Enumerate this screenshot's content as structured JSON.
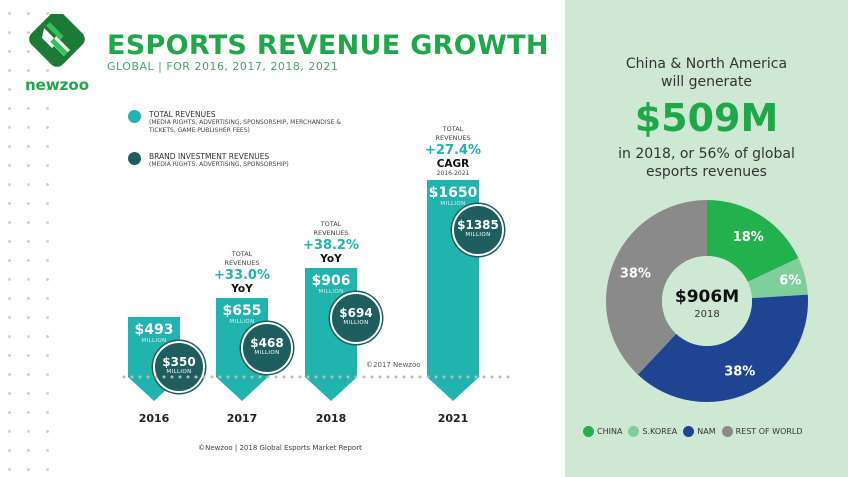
{
  "header": {
    "title": "ESPORTS REVENUE GROWTH",
    "subtitle": "GLOBAL | FOR 2016, 2017, 2018, 2021",
    "logo_text": "newzoo"
  },
  "legend": [
    {
      "label": "TOTAL REVENUES",
      "sub": "(MEDIA RIGHTS, ADVERTISING, SPONSORSHIP, MERCHANDISE & TICKETS, GAME PUBLISHER FEES)",
      "color": "#21b3ae"
    },
    {
      "label": "BRAND INVESTMENT REVENUES",
      "sub": "(MEDIA RIGHTS, ADVERTISING, SPONSORSHIP)",
      "color": "#1e5e5f"
    }
  ],
  "chart_data": [
    {
      "type": "bar",
      "categories": [
        "2016",
        "2017",
        "2018",
        "2021"
      ],
      "series": [
        {
          "name": "TOTAL REVENUES",
          "values": [
            493,
            655,
            906,
            1650
          ],
          "labels": [
            "$493",
            "$655",
            "$906",
            "$1650"
          ]
        },
        {
          "name": "BRAND INVESTMENT REVENUES",
          "values": [
            350,
            468,
            694,
            1385
          ],
          "labels": [
            "$350",
            "$468",
            "$694",
            "$1385"
          ]
        }
      ],
      "unit": "MILLION",
      "annotations": [
        null,
        {
          "title": "TOTAL REVENUES",
          "value": "+33.0%",
          "kind": "YoY"
        },
        {
          "title": "TOTAL REVENUES",
          "value": "+38.2%",
          "kind": "YoY"
        },
        {
          "title": "TOTAL REVENUES",
          "value": "+27.4%",
          "kind": "CAGR",
          "period": "2016-2021"
        }
      ],
      "copyright": "©2017 Newzoo"
    },
    {
      "type": "pie",
      "title": "$906M",
      "subtitle": "2018",
      "categories": [
        "CHINA",
        "S.KOREA",
        "NAM",
        "REST OF WORLD"
      ],
      "values": [
        18,
        6,
        38,
        38
      ],
      "labels": [
        "18%",
        "6%",
        "38%",
        "38%"
      ],
      "colors": [
        "#22b14c",
        "#7fcf9b",
        "#1f4592",
        "#8a8a8a"
      ]
    }
  ],
  "panel": {
    "line1": "China & North America",
    "line2": "will generate",
    "amount": "$509M",
    "line3": "in 2018, or 56% of global",
    "line4": "esports revenues"
  },
  "source": "©Newzoo | 2018 Global Esports Market Report"
}
